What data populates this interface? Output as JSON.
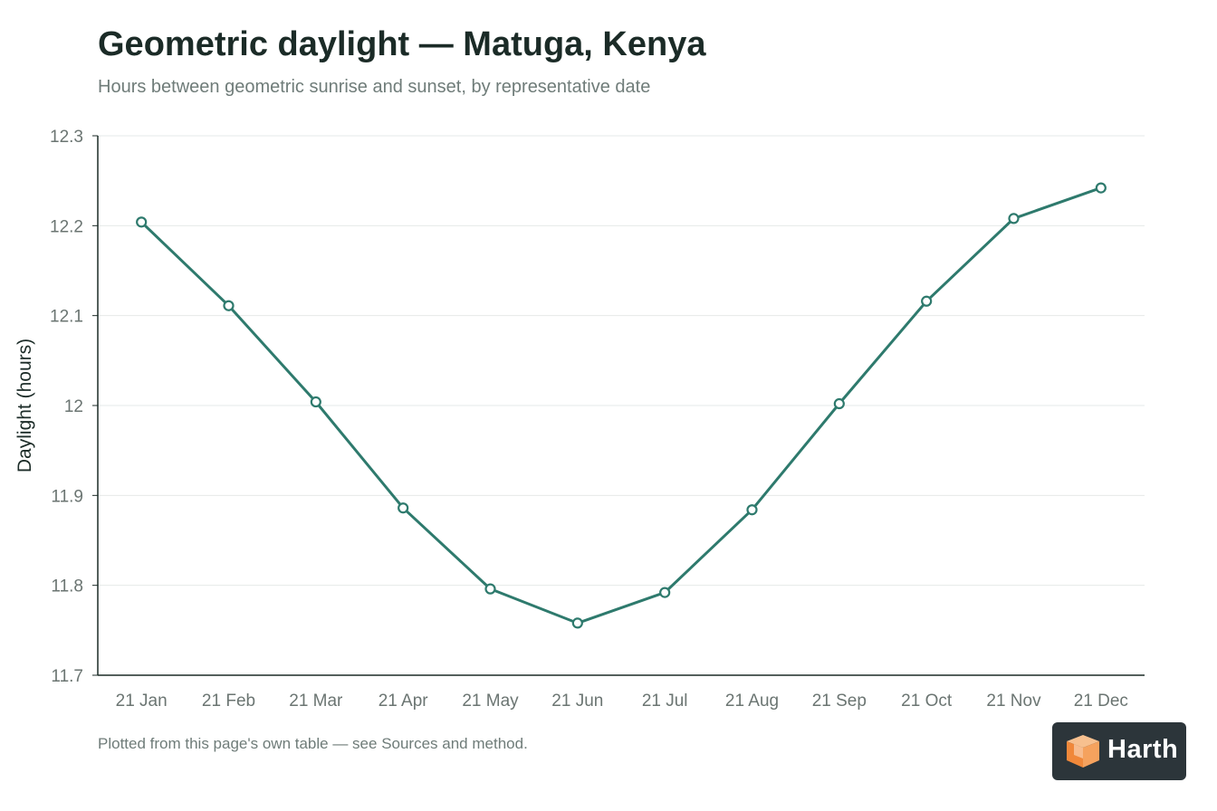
{
  "header": {
    "title": "Geometric daylight — Matuga, Kenya",
    "subtitle": "Hours between geometric sunrise and sunset, by representative date"
  },
  "footer": {
    "note": "Plotted from this page's own table — see Sources and method."
  },
  "logo": {
    "text": "Harth",
    "icon": "cube-icon"
  },
  "colors": {
    "line": "#2e7a6d",
    "axis": "#1b2b27",
    "grid": "#e6e9e8"
  },
  "chart_data": {
    "type": "line",
    "title": "Geometric daylight — Matuga, Kenya",
    "subtitle": "Hours between geometric sunrise and sunset, by representative date",
    "xlabel": "",
    "ylabel": "Daylight (hours)",
    "categories": [
      "21 Jan",
      "21 Feb",
      "21 Mar",
      "21 Apr",
      "21 May",
      "21 Jun",
      "21 Jul",
      "21 Aug",
      "21 Sep",
      "21 Oct",
      "21 Nov",
      "21 Dec"
    ],
    "series": [
      {
        "values": [
          12.204,
          12.111,
          12.004,
          11.886,
          11.796,
          11.758,
          11.792,
          11.884,
          12.002,
          12.116,
          12.208,
          12.242
        ]
      }
    ],
    "ylim": [
      11.7,
      12.3
    ],
    "yticks": [
      "11.7",
      "11.8",
      "11.9",
      "12",
      "12.1",
      "12.2",
      "12.3"
    ],
    "grid": true,
    "legend": "none"
  }
}
